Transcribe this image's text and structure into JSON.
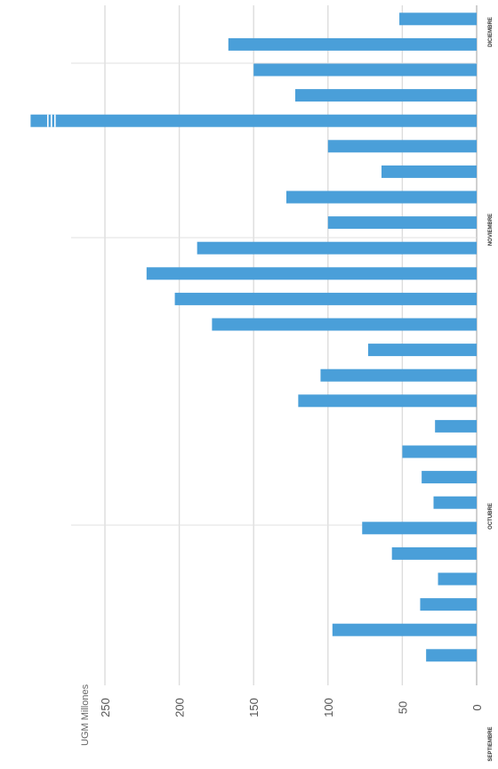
{
  "chart_data": {
    "type": "bar",
    "orientation": "rotated-90-ccw",
    "ylabel": "UGM Millones",
    "ylim": [
      0,
      300
    ],
    "yticks": [
      "0",
      "50",
      "100",
      "150",
      "200",
      "250"
    ],
    "grid": true,
    "color": "#4a9fd9",
    "month_labels": [
      "SEPTIEMBRE",
      "OCTUBRE",
      "NOVIEMBRE",
      "DICIEMBRE"
    ],
    "values": [
      34,
      97,
      38,
      26,
      57,
      77,
      29,
      37,
      50,
      28,
      120,
      105,
      73,
      178,
      203,
      222,
      188,
      100,
      128,
      64,
      100,
      300,
      122,
      150,
      167,
      52
    ]
  }
}
